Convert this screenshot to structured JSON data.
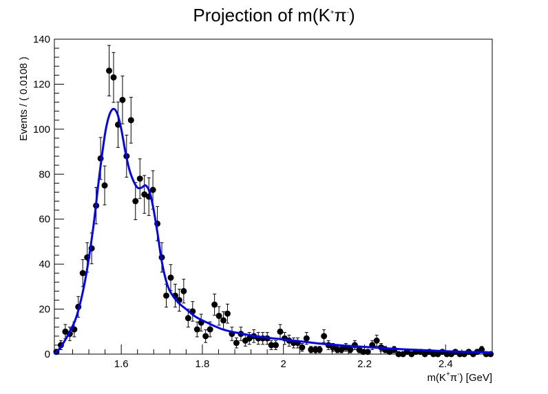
{
  "chart_data": {
    "type": "scatter",
    "title": {
      "base": "Projection of m(K",
      "sup1": "+",
      "mid": "π",
      "sup2": "-",
      "end": ")"
    },
    "xlabel": {
      "base": "m(K",
      "sup1": "+",
      "mid": "π",
      "sup2": "-",
      "end": ") [GeV]"
    },
    "ylabel": "Events / ( 0.0108 )",
    "xlim": [
      1.435,
      2.515
    ],
    "ylim": [
      0,
      140
    ],
    "x_ticks": [
      1.6,
      1.8,
      2.0,
      2.2,
      2.4
    ],
    "x_tick_labels": [
      "1.6",
      "1.8",
      "2",
      "2.2",
      "2.4"
    ],
    "y_ticks": [
      0,
      20,
      40,
      60,
      80,
      100,
      120,
      140
    ],
    "y_tick_labels": [
      "0",
      "20",
      "40",
      "60",
      "80",
      "100",
      "120",
      "140"
    ],
    "grid": false,
    "series": [
      {
        "kind": "points_with_errors",
        "color": "#000000",
        "x": [
          1.44,
          1.451,
          1.462,
          1.473,
          1.484,
          1.494,
          1.505,
          1.516,
          1.527,
          1.538,
          1.549,
          1.559,
          1.57,
          1.581,
          1.592,
          1.603,
          1.613,
          1.624,
          1.635,
          1.646,
          1.657,
          1.668,
          1.678,
          1.689,
          1.7,
          1.711,
          1.722,
          1.733,
          1.743,
          1.754,
          1.765,
          1.776,
          1.787,
          1.797,
          1.808,
          1.819,
          1.83,
          1.841,
          1.852,
          1.862,
          1.873,
          1.884,
          1.895,
          1.906,
          1.916,
          1.927,
          1.938,
          1.949,
          1.96,
          1.97,
          1.981,
          1.992,
          2.003,
          2.014,
          2.025,
          2.035,
          2.046,
          2.057,
          2.068,
          2.079,
          2.089,
          2.1,
          2.111,
          2.122,
          2.133,
          2.143,
          2.154,
          2.165,
          2.176,
          2.187,
          2.197,
          2.208,
          2.219,
          2.23,
          2.241,
          2.251,
          2.262,
          2.273,
          2.284,
          2.295,
          2.305,
          2.316,
          2.327,
          2.338,
          2.349,
          2.36,
          2.37,
          2.381,
          2.392,
          2.403,
          2.414,
          2.424,
          2.435,
          2.446,
          2.457,
          2.468,
          2.478,
          2.489,
          2.5,
          2.511
        ],
        "y": [
          1,
          4,
          10,
          9,
          11,
          21,
          36,
          43,
          47,
          66,
          87,
          75,
          126,
          123,
          102,
          113,
          88,
          104,
          68,
          78,
          71,
          70,
          73,
          58,
          43,
          26,
          34,
          26,
          24,
          28,
          16,
          19,
          11,
          14,
          8,
          11,
          22,
          17,
          15,
          18,
          9,
          5,
          9,
          6,
          7,
          8,
          7,
          7,
          7,
          4,
          4,
          10,
          7,
          6,
          5,
          5,
          3,
          7,
          2,
          2,
          2,
          8,
          4,
          3,
          2,
          2,
          3,
          2,
          4,
          2,
          1,
          1,
          4,
          6,
          3,
          2,
          1,
          2,
          0,
          0,
          1,
          0,
          1,
          1,
          0,
          1,
          0,
          0,
          1,
          0,
          0,
          1,
          0,
          0,
          1,
          0,
          1,
          2,
          0,
          0
        ]
      },
      {
        "kind": "fit_curve",
        "color": "#0000ff",
        "x": [
          1.435,
          1.45,
          1.47,
          1.49,
          1.51,
          1.53,
          1.545,
          1.56,
          1.57,
          1.58,
          1.59,
          1.6,
          1.61,
          1.62,
          1.63,
          1.64,
          1.65,
          1.66,
          1.67,
          1.68,
          1.69,
          1.7,
          1.71,
          1.72,
          1.74,
          1.76,
          1.78,
          1.8,
          1.85,
          1.9,
          1.95,
          2.0,
          2.05,
          2.1,
          2.15,
          2.2,
          2.25,
          2.3,
          2.35,
          2.4,
          2.45,
          2.515
        ],
        "y": [
          0,
          3,
          9,
          17,
          32,
          55,
          78,
          98,
          106,
          109,
          107,
          100,
          90,
          82,
          77,
          74,
          74,
          75,
          72,
          64,
          53,
          41,
          33,
          28,
          23,
          20,
          17,
          15,
          11,
          9,
          7.5,
          6.5,
          5.5,
          4.5,
          3.8,
          3.2,
          2.6,
          2.1,
          1.7,
          1.3,
          1.0,
          0.7
        ]
      }
    ]
  }
}
